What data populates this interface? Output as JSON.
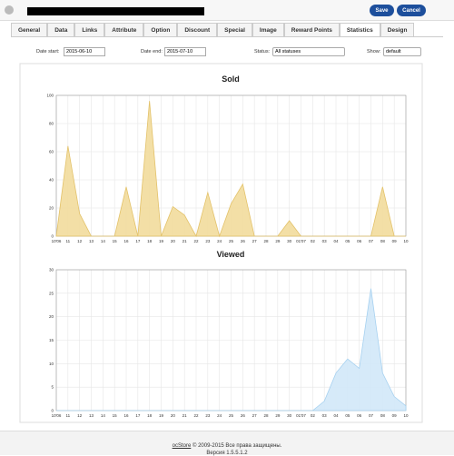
{
  "header": {
    "save": "Save",
    "cancel": "Cancel"
  },
  "tabs": [
    "General",
    "Data",
    "Links",
    "Attribute",
    "Option",
    "Discount",
    "Special",
    "Image",
    "Reward Points",
    "Statistics",
    "Design"
  ],
  "active_tab": 9,
  "filters": {
    "date_start_label": "Date start:",
    "date_start": "2015-06-10",
    "date_end_label": "Date end:",
    "date_end": "2015-07-10",
    "status_label": "Status:",
    "status": "All statuses",
    "show_label": "Show:",
    "show": "default"
  },
  "chart_data": [
    {
      "type": "area",
      "title": "Sold",
      "color": "#f2dc9c",
      "line_color": "#e3c26a",
      "grid": true,
      "categories": [
        "10'06",
        "11",
        "12",
        "13",
        "14",
        "15",
        "16",
        "17",
        "18",
        "19",
        "20",
        "21",
        "22",
        "23",
        "24",
        "25",
        "26",
        "27",
        "28",
        "29",
        "30",
        "01'07",
        "02",
        "03",
        "04",
        "05",
        "06",
        "07",
        "08",
        "09",
        "10"
      ],
      "values": [
        0,
        64,
        16,
        0,
        0,
        0,
        35,
        0,
        96,
        0,
        21,
        15,
        0,
        31,
        0,
        23,
        37,
        0,
        0,
        0,
        11,
        0,
        0,
        0,
        0,
        0,
        0,
        0,
        35,
        0,
        0
      ],
      "ylim": [
        0,
        100
      ],
      "yticks": [
        0,
        20,
        40,
        60,
        80,
        100
      ]
    },
    {
      "type": "area",
      "title": "Viewed",
      "color": "#d2e8f8",
      "line_color": "#a6d1f0",
      "grid": true,
      "categories": [
        "10'06",
        "11",
        "12",
        "13",
        "14",
        "15",
        "16",
        "17",
        "18",
        "19",
        "20",
        "21",
        "22",
        "23",
        "24",
        "25",
        "26",
        "27",
        "28",
        "29",
        "30",
        "01'07",
        "02",
        "03",
        "04",
        "05",
        "06",
        "07",
        "08",
        "09",
        "10"
      ],
      "values": [
        0,
        0,
        0,
        0,
        0,
        0,
        0,
        0,
        0,
        0,
        0,
        0,
        0,
        0,
        0,
        0,
        0,
        0,
        0,
        0,
        0,
        0,
        0,
        2,
        8,
        11,
        9,
        26,
        8,
        3,
        1
      ],
      "ylim": [
        0,
        30
      ],
      "yticks": [
        0,
        5,
        10,
        15,
        20,
        25,
        30
      ]
    }
  ],
  "footer": {
    "link": "ocStore",
    "text": " © 2009-2015 Все права защищены.",
    "version": "Версия 1.5.5.1.2"
  }
}
